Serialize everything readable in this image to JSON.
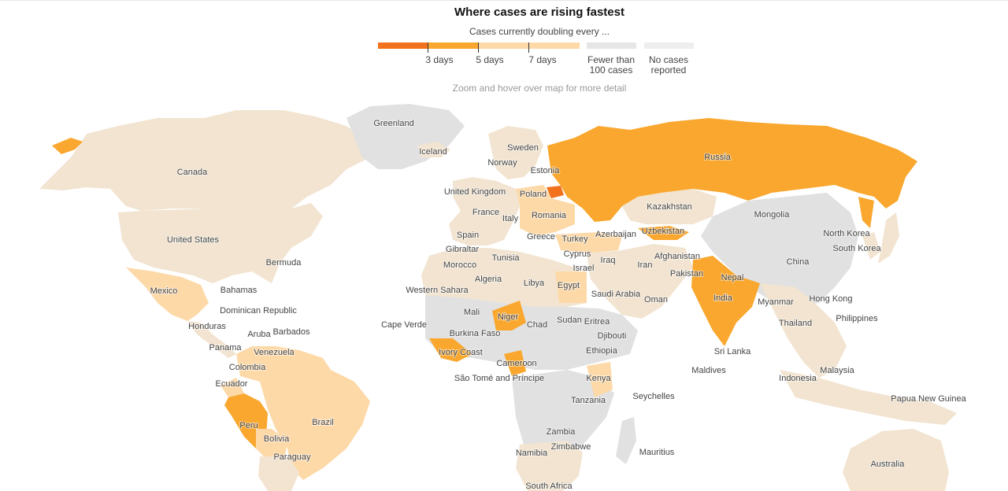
{
  "header": {
    "title": "Where cases are rising fastest",
    "subtitle": "Cases currently doubling every ...",
    "hint": "Zoom and hover over map for more detail"
  },
  "legend": {
    "items": [
      {
        "label": "3 days",
        "color": "#f2711c"
      },
      {
        "label": "5 days",
        "color": "#f9a72e"
      },
      {
        "label": "7 days",
        "color": "#fdd9a8"
      },
      {
        "label": "Fewer than 100 cases",
        "line1": "Fewer than",
        "line2": "100 cases",
        "color": "#f2e4d0"
      },
      {
        "label": "No cases reported",
        "line1": "No cases",
        "line2": "reported",
        "color": "#e1e1e1"
      }
    ]
  },
  "colors": {
    "days3": "#f2711c",
    "days5": "#f9a72e",
    "days7": "#fdd9a8",
    "fewer": "#f2e4d0",
    "none": "#e1e1e1"
  },
  "map": {
    "labels": [
      "Greenland",
      "Iceland",
      "Sweden",
      "Norway",
      "Estonia",
      "Russia",
      "Canada",
      "United Kingdom",
      "Poland",
      "France",
      "Romania",
      "Italy",
      "Kazakhstan",
      "Mongolia",
      "United States",
      "Spain",
      "Greece",
      "Turkey",
      "Azerbaijan",
      "Uzbekistan",
      "North Korea",
      "Gibraltar",
      "Cyprus",
      "Tunisia",
      "Afghanistan",
      "South Korea",
      "Bermuda",
      "Morocco",
      "Iraq",
      "Israel",
      "Iran",
      "China",
      "Algeria",
      "Pakistan",
      "Nepal",
      "Mexico",
      "Bahamas",
      "Libya",
      "Egypt",
      "Western Sahara",
      "Saudi Arabia",
      "India",
      "Oman",
      "Myanmar",
      "Hong Kong",
      "Dominican Republic",
      "Philippines",
      "Cape Verde",
      "Mali",
      "Niger",
      "Sudan",
      "Eritrea",
      "Honduras",
      "Barbados",
      "Aruba",
      "Chad",
      "Thailand",
      "Burkina Faso",
      "Djibouti",
      "Panama",
      "Venezuela",
      "Sri Lanka",
      "Ivory Coast",
      "Ethiopia",
      "Colombia",
      "Cameroon",
      "Maldives",
      "Malaysia",
      "Ecuador",
      "São Tomé and Príncipe",
      "Kenya",
      "Indonesia",
      "Seychelles",
      "Tanzania",
      "Papua New Guinea",
      "Peru",
      "Brazil",
      "Zambia",
      "Bolivia",
      "Zimbabwe",
      "Namibia",
      "Mauritius",
      "Paraguay",
      "Australia",
      "South Africa"
    ]
  }
}
